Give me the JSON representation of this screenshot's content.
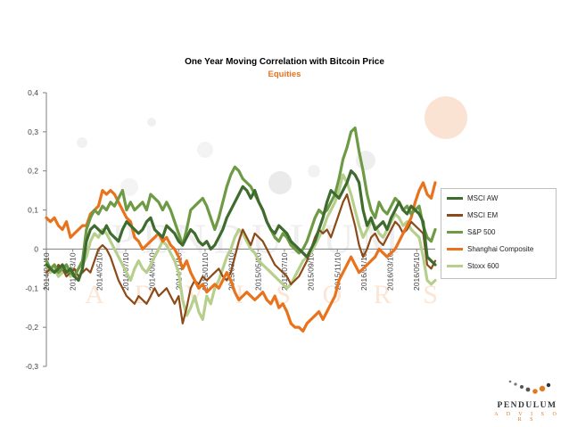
{
  "chart_data": {
    "type": "line",
    "title": "One Year Moving Correlation with Bitcoin Price",
    "subtitle": "Equities",
    "xlabel": "",
    "ylabel": "",
    "ylim": [
      -0.3,
      0.4
    ],
    "yticks": [
      "0,4",
      "0,3",
      "0,2",
      "0,1",
      "0",
      "-0,1",
      "-0,2",
      "-0,3"
    ],
    "xticks": [
      "2014/01/10",
      "2014/03/10",
      "2014/05/10",
      "2014/07/10",
      "2014/09/10",
      "2014/11/10",
      "2015/01/10",
      "2015/03/10",
      "2015/05/10",
      "2015/07/10",
      "2015/09/10",
      "2015/11/10",
      "2016/01/10",
      "2016/03/10",
      "2016/05/10"
    ],
    "grid": false,
    "legend_position": "right",
    "series": [
      {
        "name": "MSCI AW",
        "color": "#3e6b2e",
        "width": 3.2,
        "values": [
          -0.04,
          -0.05,
          -0.06,
          -0.05,
          -0.04,
          -0.06,
          -0.05,
          -0.07,
          -0.08,
          -0.05,
          0.02,
          0.05,
          0.06,
          0.05,
          0.04,
          0.06,
          0.04,
          0.03,
          0.02,
          0.05,
          0.07,
          0.06,
          0.05,
          0.04,
          0.05,
          0.07,
          0.08,
          0.05,
          0.04,
          0.03,
          0.06,
          0.05,
          0.04,
          0.02,
          0.01,
          0.03,
          0.05,
          0.04,
          0.02,
          0.01,
          0.02,
          0.0,
          0.01,
          0.03,
          0.05,
          0.08,
          0.1,
          0.12,
          0.14,
          0.16,
          0.15,
          0.13,
          0.15,
          0.12,
          0.1,
          0.07,
          0.05,
          0.04,
          0.06,
          0.05,
          0.04,
          0.02,
          0.01,
          0.0,
          -0.01,
          -0.02,
          0.0,
          0.02,
          0.05,
          0.08,
          0.12,
          0.15,
          0.14,
          0.13,
          0.15,
          0.17,
          0.2,
          0.19,
          0.17,
          0.1,
          0.06,
          0.08,
          0.05,
          0.06,
          0.07,
          0.05,
          0.08,
          0.1,
          0.12,
          0.1,
          0.09,
          0.11,
          0.1,
          0.09,
          0.07,
          -0.02,
          -0.03,
          -0.04
        ]
      },
      {
        "name": "MSCI EM",
        "color": "#8b4a17",
        "width": 2.2,
        "values": [
          -0.06,
          -0.05,
          -0.06,
          -0.04,
          -0.05,
          -0.07,
          -0.06,
          -0.05,
          -0.07,
          -0.06,
          -0.05,
          -0.06,
          -0.03,
          0.0,
          0.01,
          0.0,
          -0.02,
          -0.05,
          -0.08,
          -0.1,
          -0.12,
          -0.13,
          -0.14,
          -0.12,
          -0.13,
          -0.14,
          -0.12,
          -0.1,
          -0.12,
          -0.11,
          -0.1,
          -0.12,
          -0.14,
          -0.12,
          -0.19,
          -0.15,
          -0.1,
          -0.08,
          -0.09,
          -0.07,
          -0.08,
          -0.07,
          -0.06,
          -0.05,
          -0.07,
          -0.08,
          -0.06,
          -0.02,
          0.02,
          0.05,
          0.03,
          0.01,
          0.04,
          0.03,
          0.02,
          0.0,
          -0.02,
          -0.04,
          -0.05,
          -0.06,
          -0.07,
          -0.09,
          -0.08,
          -0.07,
          -0.05,
          -0.03,
          0.0,
          0.03,
          0.05,
          0.04,
          0.05,
          0.03,
          0.06,
          0.09,
          0.12,
          0.14,
          0.1,
          0.06,
          0.01,
          -0.02,
          0.0,
          0.03,
          0.04,
          0.02,
          0.01,
          0.03,
          0.05,
          0.07,
          0.06,
          0.04,
          0.05,
          0.07,
          0.06,
          0.05,
          0.04,
          -0.04,
          -0.05,
          -0.03
        ]
      },
      {
        "name": "S&P 500",
        "color": "#6e9a45",
        "width": 3.2,
        "values": [
          -0.03,
          -0.05,
          -0.04,
          -0.06,
          -0.05,
          -0.04,
          -0.06,
          -0.07,
          -0.05,
          -0.03,
          0.05,
          0.08,
          0.1,
          0.09,
          0.11,
          0.1,
          0.12,
          0.11,
          0.13,
          0.15,
          0.1,
          0.12,
          0.1,
          0.11,
          0.12,
          0.1,
          0.14,
          0.13,
          0.12,
          0.1,
          0.12,
          0.1,
          0.07,
          0.04,
          0.01,
          0.05,
          0.1,
          0.11,
          0.12,
          0.13,
          0.11,
          0.08,
          0.05,
          0.08,
          0.12,
          0.16,
          0.19,
          0.21,
          0.2,
          0.18,
          0.17,
          0.16,
          0.14,
          0.12,
          0.1,
          0.07,
          0.05,
          0.03,
          0.02,
          0.04,
          0.03,
          0.01,
          0.0,
          -0.01,
          0.0,
          0.02,
          0.05,
          0.08,
          0.1,
          0.09,
          0.1,
          0.12,
          0.14,
          0.18,
          0.23,
          0.26,
          0.3,
          0.31,
          0.25,
          0.2,
          0.14,
          0.1,
          0.08,
          0.12,
          0.1,
          0.09,
          0.11,
          0.13,
          0.12,
          0.1,
          0.11,
          0.09,
          0.1,
          0.11,
          0.06,
          0.03,
          0.02,
          0.05
        ]
      },
      {
        "name": "Shanghai Composite",
        "color": "#e8731c",
        "width": 3.2,
        "values": [
          0.08,
          0.07,
          0.08,
          0.06,
          0.05,
          0.07,
          0.03,
          0.04,
          0.05,
          0.06,
          0.06,
          0.09,
          0.1,
          0.11,
          0.15,
          0.14,
          0.15,
          0.14,
          0.12,
          0.1,
          0.08,
          0.07,
          0.03,
          0.02,
          0.0,
          0.01,
          0.02,
          0.03,
          0.04,
          0.02,
          0.03,
          0.01,
          0.0,
          -0.02,
          -0.05,
          -0.03,
          -0.06,
          -0.08,
          -0.1,
          -0.09,
          -0.11,
          -0.1,
          -0.09,
          -0.1,
          -0.08,
          -0.06,
          -0.08,
          -0.11,
          -0.13,
          -0.12,
          -0.11,
          -0.12,
          -0.13,
          -0.12,
          -0.11,
          -0.13,
          -0.14,
          -0.12,
          -0.15,
          -0.14,
          -0.16,
          -0.19,
          -0.2,
          -0.2,
          -0.21,
          -0.19,
          -0.18,
          -0.17,
          -0.16,
          -0.18,
          -0.16,
          -0.14,
          -0.12,
          -0.08,
          -0.06,
          -0.04,
          -0.02,
          -0.04,
          -0.06,
          -0.05,
          -0.04,
          -0.03,
          -0.02,
          0.0,
          -0.01,
          -0.02,
          -0.01,
          0.0,
          0.02,
          0.04,
          0.06,
          0.08,
          0.12,
          0.15,
          0.17,
          0.14,
          0.13,
          0.17
        ]
      },
      {
        "name": "Stoxx 600",
        "color": "#b6cf8c",
        "width": 3.2,
        "values": [
          -0.04,
          -0.06,
          -0.05,
          -0.07,
          -0.06,
          -0.05,
          -0.07,
          -0.06,
          -0.05,
          -0.04,
          -0.02,
          0.02,
          0.04,
          0.03,
          0.05,
          0.04,
          0.02,
          0.0,
          -0.02,
          -0.04,
          -0.06,
          -0.08,
          -0.05,
          -0.03,
          -0.05,
          -0.06,
          -0.04,
          -0.02,
          0.0,
          0.02,
          0.01,
          -0.01,
          -0.03,
          -0.06,
          -0.13,
          -0.17,
          -0.15,
          -0.12,
          -0.16,
          -0.18,
          -0.12,
          -0.14,
          -0.1,
          -0.08,
          -0.05,
          -0.02,
          0.0,
          0.03,
          0.05,
          0.04,
          0.02,
          0.0,
          -0.01,
          -0.03,
          -0.04,
          -0.05,
          -0.06,
          -0.07,
          -0.08,
          -0.09,
          -0.1,
          -0.09,
          -0.07,
          -0.05,
          -0.03,
          -0.02,
          -0.01,
          0.01,
          0.03,
          0.05,
          0.08,
          0.1,
          0.12,
          0.15,
          0.19,
          0.17,
          0.14,
          0.1,
          0.06,
          0.03,
          0.05,
          0.07,
          0.06,
          0.04,
          0.03,
          0.05,
          0.07,
          0.09,
          0.08,
          0.06,
          0.07,
          0.05,
          0.04,
          0.03,
          -0.02,
          -0.08,
          -0.09,
          -0.08
        ]
      }
    ]
  },
  "watermark": {
    "line1": "PENDULUM",
    "line2": "A D V I S O R S"
  },
  "logo": {
    "name": "PENDULUM",
    "sub": "A D V I S O R S",
    "icon": "pendulum-dots-logo"
  },
  "colors": {
    "title": "#000000",
    "subtitle": "#e8731c",
    "axis": "#7f7f7f"
  }
}
